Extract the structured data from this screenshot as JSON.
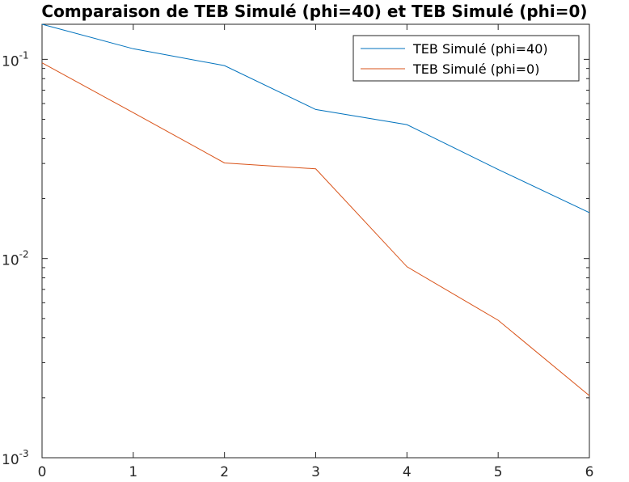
{
  "chart_data": {
    "type": "line",
    "title": "Comparaison de TEB Simulé (phi=40) et TEB Simulé (phi=0)",
    "xlabel": "",
    "ylabel": "",
    "x": [
      0,
      1,
      2,
      3,
      4,
      5,
      6
    ],
    "xlim": [
      0,
      6
    ],
    "ylim": [
      0.001,
      0.15
    ],
    "yscale": "log",
    "x_ticks": [
      "0",
      "1",
      "2",
      "3",
      "4",
      "5",
      "6"
    ],
    "y_ticks": [
      {
        "value": 0.1,
        "base": "10",
        "exp": "-1"
      },
      {
        "value": 0.01,
        "base": "10",
        "exp": "-2"
      },
      {
        "value": 0.001,
        "base": "10",
        "exp": "-3"
      }
    ],
    "grid": false,
    "legend_position": "top-right",
    "series": [
      {
        "name": "TEB Simulé (phi=40)",
        "color": "#0072BD",
        "values": [
          0.15,
          0.113,
          0.093,
          0.056,
          0.047,
          0.028,
          0.017
        ]
      },
      {
        "name": "TEB Simulé (phi=0)",
        "color": "#D95319",
        "values": [
          0.096,
          0.054,
          0.0302,
          0.0282,
          0.0091,
          0.0049,
          0.00205
        ]
      }
    ]
  }
}
